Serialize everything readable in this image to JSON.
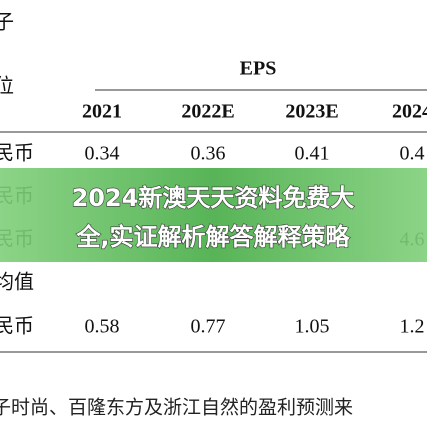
{
  "header": {
    "corner": "子",
    "unit": "位",
    "group": "EPS"
  },
  "table": {
    "columns": [
      "2021",
      "2022E",
      "2023E",
      "2024"
    ],
    "rows": [
      {
        "label": "民币",
        "values": [
          "0.34",
          "0.36",
          "0.41",
          "0.4"
        ]
      },
      {
        "label": "民币",
        "values": [
          null,
          null,
          null,
          null
        ]
      },
      {
        "label": "民币",
        "values": [
          null,
          null,
          null,
          "4.6"
        ]
      },
      {
        "label": "均值",
        "values": [
          null,
          null,
          null,
          null
        ]
      },
      {
        "label": "民币",
        "values": [
          "0.58",
          "0.77",
          "1.05",
          "1.2"
        ]
      }
    ]
  },
  "banner": {
    "lines": [
      "2024新澳天天资料免费大",
      "全,实证解析解答解释策略"
    ]
  },
  "footnote": "子时尚、百隆东方及浙江自然的盈利预测来"
}
